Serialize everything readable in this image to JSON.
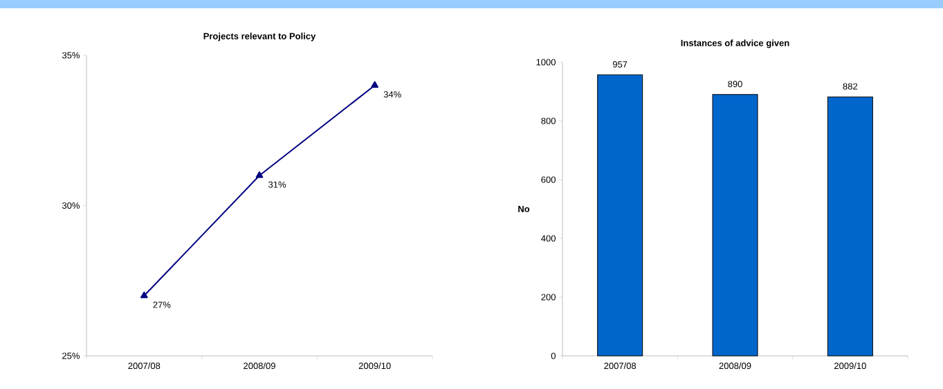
{
  "chart_data": [
    {
      "type": "line",
      "title": "Projects relevant to Policy",
      "categories": [
        "2007/08",
        "2008/09",
        "2009/10"
      ],
      "values": [
        27,
        31,
        34
      ],
      "value_labels": [
        "27%",
        "31%",
        "34%"
      ],
      "color": "#000080",
      "marker": "triangle",
      "ylim": [
        25,
        35
      ],
      "yticks": [
        {
          "value": 25,
          "label": "25%"
        },
        {
          "value": 30,
          "label": "30%"
        },
        {
          "value": 35,
          "label": "35%"
        }
      ]
    },
    {
      "type": "bar",
      "title": "Instances of advice given",
      "ylabel": "No",
      "categories": [
        "2007/08",
        "2008/09",
        "2009/10"
      ],
      "values": [
        957,
        890,
        882
      ],
      "color": "#0066cc",
      "data_labels": true,
      "ylim": [
        0,
        1000
      ],
      "yticks": [
        0,
        200,
        400,
        600,
        800,
        1000
      ]
    }
  ]
}
